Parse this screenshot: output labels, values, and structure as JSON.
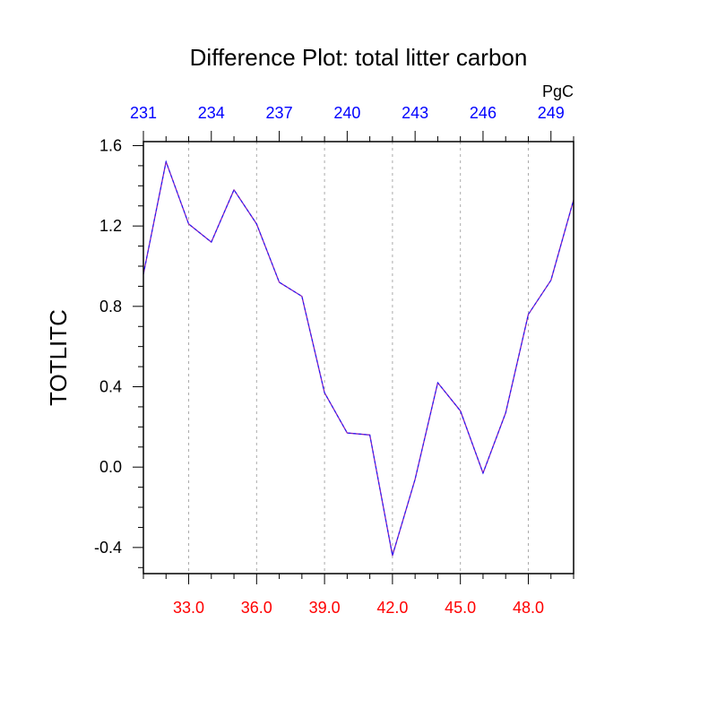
{
  "chart_data": {
    "type": "line",
    "title": "Difference Plot: total litter carbon",
    "ylabel": "TOTLITC",
    "top_axis_unit": "PgC",
    "xlim": [
      31,
      50
    ],
    "ylim": [
      -0.53,
      1.62
    ],
    "x_ticks": [
      33,
      36,
      39,
      42,
      45,
      48
    ],
    "x_tick_labels": [
      "33.0",
      "36.0",
      "39.0",
      "42.0",
      "45.0",
      "48.0"
    ],
    "y_ticks": [
      -0.4,
      0.0,
      0.4,
      0.8,
      1.2,
      1.6
    ],
    "y_tick_labels": [
      "-0.4",
      "0.0",
      "0.4",
      "0.8",
      "1.2",
      "1.6"
    ],
    "top_ticks": [
      31,
      34,
      37,
      40,
      43,
      46,
      49
    ],
    "top_tick_labels": [
      "231",
      "234",
      "237",
      "240",
      "243",
      "246",
      "249"
    ],
    "grid": "vertical-dashed",
    "series": [
      {
        "x": [
          31,
          32,
          33,
          34,
          35,
          36,
          37,
          38,
          39,
          40,
          41,
          42,
          43,
          44,
          45,
          46,
          47,
          48,
          49,
          50
        ],
        "values": [
          0.96,
          1.52,
          1.21,
          1.12,
          1.38,
          1.21,
          0.92,
          0.85,
          0.37,
          0.17,
          0.16,
          -0.44,
          -0.06,
          0.42,
          0.28,
          -0.03,
          0.27,
          0.76,
          0.93,
          1.33
        ]
      }
    ],
    "colors": {
      "line": "#8a1fb8",
      "line_dash": "#1a1aff",
      "bottom_ticks": "#ff0000",
      "top_ticks": "#0000ff",
      "grid": "#aaaaaa"
    }
  }
}
